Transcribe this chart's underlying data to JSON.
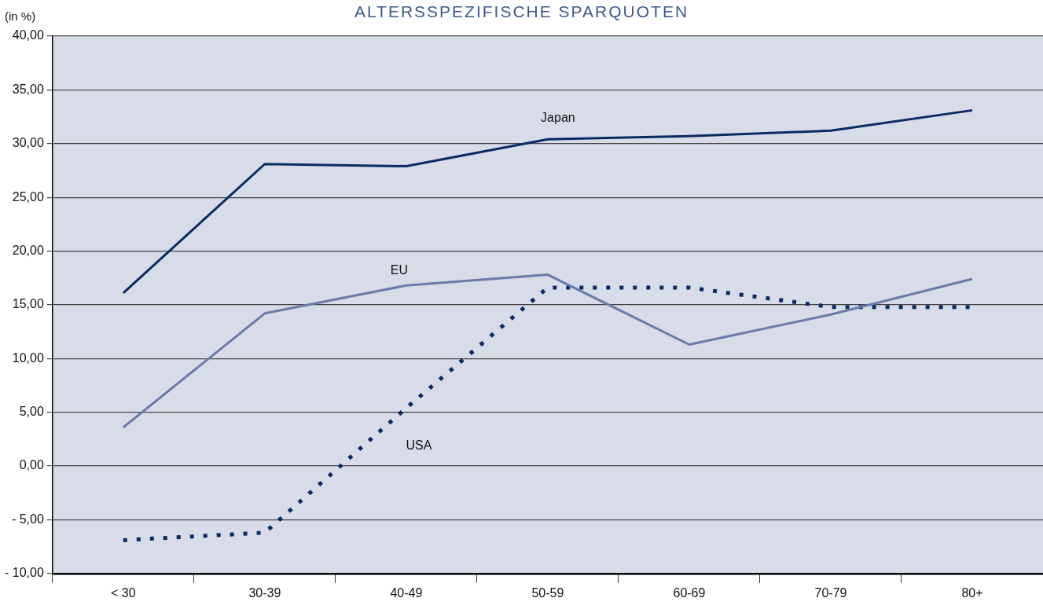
{
  "chart_data": {
    "type": "line",
    "title": "ALTERSSPEZIFISCHE SPARQUOTEN",
    "ylabel": "(in %)",
    "categories": [
      "< 30",
      "30-39",
      "40-49",
      "50-59",
      "60-69",
      "70-79",
      "80+"
    ],
    "series": [
      {
        "name": "Japan",
        "color": "#0b2a62",
        "values": [
          16.1,
          28.1,
          27.9,
          30.4,
          30.7,
          31.2,
          33.1
        ]
      },
      {
        "name": "EU",
        "color": "#6b7aa8",
        "values": [
          3.6,
          14.2,
          16.8,
          17.8,
          11.3,
          14.1,
          17.4
        ]
      },
      {
        "name": "USA",
        "color": "#0b2a62",
        "line_style": "dotted",
        "values": [
          -6.9,
          -6.2,
          5.4,
          16.6,
          16.6,
          14.8,
          14.8
        ]
      }
    ],
    "ylim": [
      -10,
      40
    ],
    "yticks": [
      {
        "value": -10,
        "label": "- 10,00"
      },
      {
        "value": -5,
        "label": "- 5,00"
      },
      {
        "value": 0,
        "label": "0,00"
      },
      {
        "value": 5,
        "label": "5,00"
      },
      {
        "value": 10,
        "label": "10,00"
      },
      {
        "value": 15,
        "label": "15,00"
      },
      {
        "value": 20,
        "label": "20,00"
      },
      {
        "value": 25,
        "label": "25,00"
      },
      {
        "value": 30,
        "label": "30,00"
      },
      {
        "value": 35,
        "label": "35,00"
      },
      {
        "value": 40,
        "label": "40,00"
      }
    ],
    "grid": "y",
    "legend": false,
    "marker": "none",
    "line_style": "solid"
  }
}
